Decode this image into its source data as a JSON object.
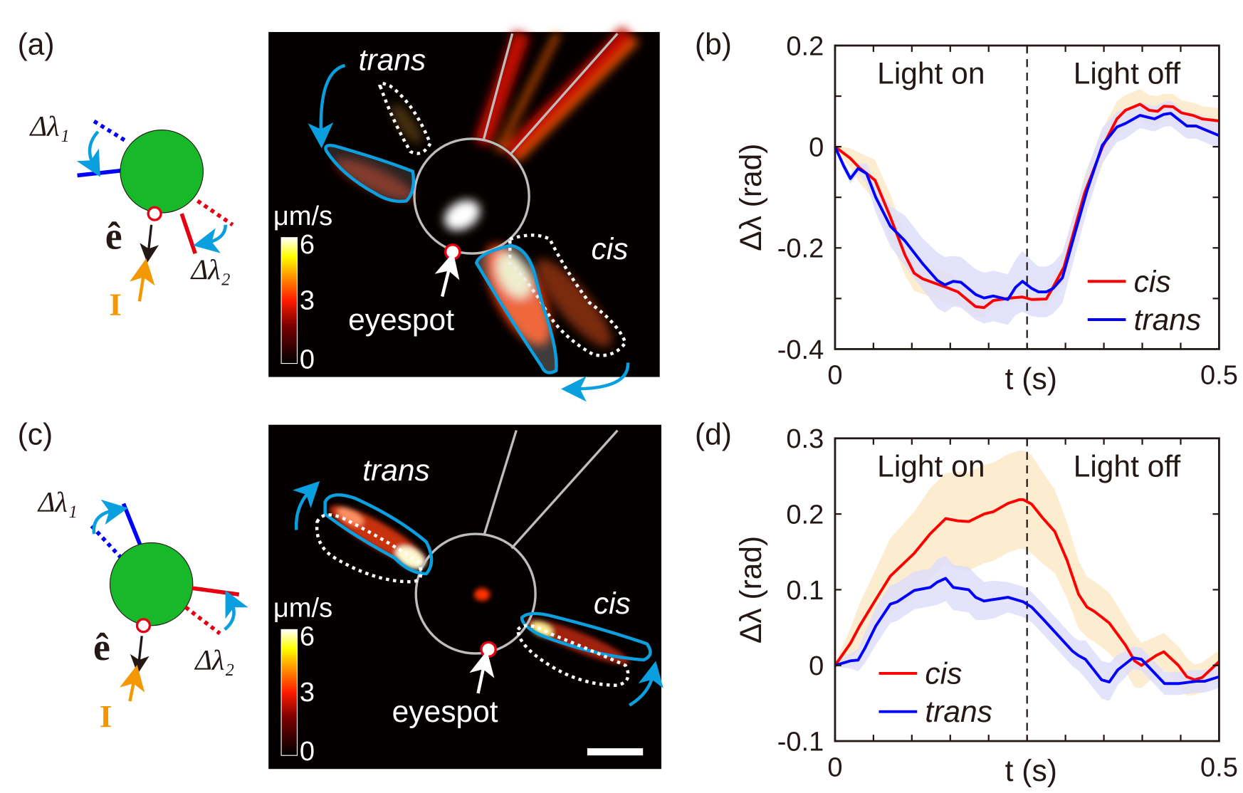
{
  "panels": {
    "a": {
      "label": "(a)",
      "delta1": "Δλ₁",
      "delta2": "Δλ₂",
      "e_hat": "ê",
      "intensity": "I",
      "trans": "trans",
      "cis": "cis",
      "eyespot": "eyespot",
      "colorbar": {
        "unit": "μm/s",
        "max": "6",
        "mid": "3",
        "min": "0"
      }
    },
    "b": {
      "label": "(b)"
    },
    "c": {
      "label": "(c)",
      "delta1": "Δλ₁",
      "delta2": "Δλ₂",
      "e_hat": "ê",
      "intensity": "I",
      "trans": "trans",
      "cis": "cis",
      "eyespot": "eyespot",
      "colorbar": {
        "unit": "μm/s",
        "max": "6",
        "mid": "3",
        "min": "0"
      }
    },
    "d": {
      "label": "(d)"
    }
  },
  "colors": {
    "cis": "#ff0000",
    "trans": "#0000ff",
    "cis_band": "#fde8c4",
    "trans_band": "#dcdcfb",
    "cell": "#17b92a",
    "arrow_blue": "#0aa0e0",
    "light": "#f39800"
  },
  "chart_data": [
    {
      "type": "line",
      "panel": "b",
      "xlabel": "t (s)",
      "ylabel": "Δλ (rad)",
      "xlim": [
        0,
        0.5
      ],
      "ylim": [
        -0.4,
        0.2
      ],
      "xtick_labels": [
        "0",
        "0.5"
      ],
      "ytick_labels": [
        "0.2",
        "0",
        "-0.2",
        "-0.4"
      ],
      "yticks": [
        0.2,
        0,
        -0.2,
        -0.4
      ],
      "divider_x": 0.25,
      "annotations": [
        "Light on",
        "Light off"
      ],
      "legend_position": "bottom-right",
      "grid": false,
      "series": [
        {
          "name": "cis",
          "color": "#ff0000",
          "x": [
            0,
            0.02,
            0.032,
            0.052,
            0.072,
            0.091,
            0.103,
            0.114,
            0.145,
            0.16,
            0.183,
            0.194,
            0.206,
            0.229,
            0.244,
            0.256,
            0.275,
            0.283,
            0.298,
            0.325,
            0.348,
            0.367,
            0.378,
            0.397,
            0.409,
            0.42,
            0.428,
            0.44,
            0.451,
            0.466,
            0.478,
            0.5
          ],
          "y": [
            0,
            -0.023,
            -0.042,
            -0.066,
            -0.139,
            -0.214,
            -0.25,
            -0.261,
            -0.278,
            -0.287,
            -0.316,
            -0.318,
            -0.304,
            -0.299,
            -0.297,
            -0.302,
            -0.301,
            -0.28,
            -0.238,
            -0.091,
            -0.001,
            0.055,
            0.072,
            0.084,
            0.072,
            0.07,
            0.08,
            0.079,
            0.067,
            0.062,
            0.055,
            0.051
          ],
          "spread": [
            0.002,
            0.02,
            0.03,
            0.04,
            0.045,
            0.04,
            0.035,
            0.03,
            0.03,
            0.025,
            0.02,
            0.02,
            0.015,
            0.01,
            0.01,
            0.01,
            0.015,
            0.02,
            0.03,
            0.035,
            0.035,
            0.035,
            0.03,
            0.03,
            0.03,
            0.03,
            0.025,
            0.025,
            0.025,
            0.025,
            0.025,
            0.025
          ]
        },
        {
          "name": "trans",
          "color": "#0000ff",
          "x": [
            0,
            0.011,
            0.02,
            0.03,
            0.041,
            0.053,
            0.072,
            0.091,
            0.114,
            0.133,
            0.143,
            0.154,
            0.164,
            0.183,
            0.194,
            0.206,
            0.225,
            0.235,
            0.244,
            0.256,
            0.265,
            0.275,
            0.284,
            0.296,
            0.313,
            0.328,
            0.348,
            0.367,
            0.378,
            0.397,
            0.416,
            0.428,
            0.437,
            0.458,
            0.47,
            0.481,
            0.5
          ],
          "y": [
            0,
            -0.037,
            -0.063,
            -0.043,
            -0.053,
            -0.1,
            -0.157,
            -0.186,
            -0.231,
            -0.264,
            -0.273,
            -0.266,
            -0.268,
            -0.292,
            -0.299,
            -0.295,
            -0.302,
            -0.278,
            -0.266,
            -0.28,
            -0.287,
            -0.287,
            -0.28,
            -0.259,
            -0.167,
            -0.087,
            0.003,
            0.039,
            0.046,
            0.062,
            0.055,
            0.064,
            0.066,
            0.041,
            0.041,
            0.034,
            0.022
          ],
          "spread": [
            0.002,
            0.01,
            0.01,
            0.01,
            0.02,
            0.03,
            0.04,
            0.05,
            0.05,
            0.055,
            0.055,
            0.05,
            0.05,
            0.05,
            0.05,
            0.05,
            0.05,
            0.055,
            0.06,
            0.055,
            0.05,
            0.05,
            0.05,
            0.05,
            0.045,
            0.04,
            0.035,
            0.03,
            0.03,
            0.025,
            0.025,
            0.025,
            0.025,
            0.025,
            0.025,
            0.025,
            0.025
          ]
        }
      ]
    },
    {
      "type": "line",
      "panel": "d",
      "xlabel": "t (s)",
      "ylabel": "Δλ (rad)",
      "xlim": [
        0,
        0.5
      ],
      "ylim": [
        -0.1,
        0.3
      ],
      "xtick_labels": [
        "0",
        "0.5"
      ],
      "ytick_labels": [
        "0.3",
        "0.2",
        "0.1",
        "0",
        "-0.1"
      ],
      "yticks": [
        0.3,
        0.2,
        0.1,
        0,
        -0.1
      ],
      "divider_x": 0.25,
      "annotations": [
        "Light on",
        "Light off"
      ],
      "legend_position": "bottom-left",
      "grid": false,
      "series": [
        {
          "name": "cis",
          "color": "#ff0000",
          "x": [
            0,
            0.02,
            0.032,
            0.053,
            0.072,
            0.103,
            0.124,
            0.144,
            0.16,
            0.174,
            0.194,
            0.206,
            0.225,
            0.24,
            0.245,
            0.256,
            0.271,
            0.286,
            0.302,
            0.317,
            0.328,
            0.338,
            0.357,
            0.378,
            0.39,
            0.399,
            0.418,
            0.428,
            0.447,
            0.458,
            0.468,
            0.478,
            0.5
          ],
          "y": [
            0,
            0.029,
            0.052,
            0.087,
            0.118,
            0.148,
            0.174,
            0.194,
            0.191,
            0.19,
            0.2,
            0.203,
            0.214,
            0.219,
            0.219,
            0.213,
            0.194,
            0.177,
            0.139,
            0.094,
            0.077,
            0.071,
            0.056,
            0.027,
            0.006,
            0,
            0.013,
            0.018,
            0,
            -0.015,
            -0.019,
            -0.016,
            0.005
          ],
          "spread": [
            0.002,
            0.02,
            0.03,
            0.04,
            0.05,
            0.055,
            0.06,
            0.06,
            0.065,
            0.065,
            0.065,
            0.065,
            0.065,
            0.065,
            0.065,
            0.065,
            0.06,
            0.055,
            0.05,
            0.045,
            0.04,
            0.04,
            0.04,
            0.035,
            0.035,
            0.03,
            0.025,
            0.025,
            0.025,
            0.025,
            0.02,
            0.02,
            0.015
          ]
        },
        {
          "name": "trans",
          "color": "#0000ff",
          "x": [
            0,
            0.02,
            0.03,
            0.039,
            0.053,
            0.072,
            0.081,
            0.103,
            0.124,
            0.133,
            0.144,
            0.154,
            0.174,
            0.183,
            0.194,
            0.206,
            0.225,
            0.245,
            0.256,
            0.271,
            0.29,
            0.309,
            0.317,
            0.326,
            0.347,
            0.357,
            0.368,
            0.388,
            0.399,
            0.414,
            0.429,
            0.447,
            0.47,
            0.481,
            0.5
          ],
          "y": [
            0,
            0.006,
            0.007,
            0.023,
            0.052,
            0.081,
            0.084,
            0.099,
            0.103,
            0.11,
            0.115,
            0.103,
            0.1,
            0.09,
            0.085,
            0.087,
            0.09,
            0.084,
            0.077,
            0.061,
            0.04,
            0.019,
            0.013,
            0.008,
            -0.019,
            -0.022,
            -0.006,
            0.01,
            0.008,
            -0.008,
            -0.024,
            -0.024,
            -0.021,
            -0.021,
            -0.015
          ],
          "spread": [
            0.002,
            0.01,
            0.015,
            0.02,
            0.025,
            0.025,
            0.025,
            0.025,
            0.025,
            0.03,
            0.03,
            0.03,
            0.03,
            0.03,
            0.025,
            0.025,
            0.02,
            0.02,
            0.02,
            0.02,
            0.02,
            0.02,
            0.02,
            0.025,
            0.025,
            0.025,
            0.02,
            0.015,
            0.015,
            0.015,
            0.015,
            0.015,
            0.015,
            0.015,
            0.015
          ]
        }
      ]
    }
  ]
}
